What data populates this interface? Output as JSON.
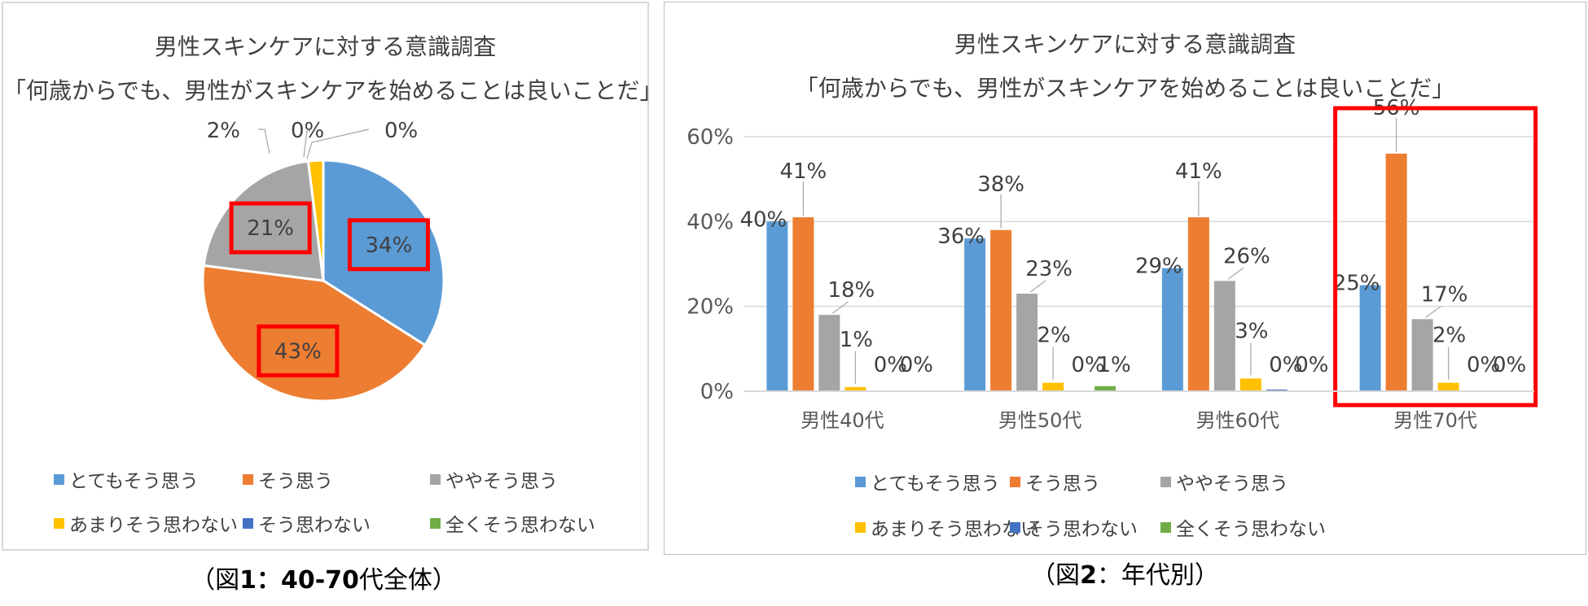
{
  "colors": [
    "#5b9bd5",
    "#ed7d31",
    "#a5a5a5",
    "#ffc000",
    "#4472c4",
    "#70ad47"
  ],
  "highlight_color": "#ff0000",
  "legend": [
    "とてもそう思う",
    "そう思う",
    "ややそう思う",
    "あまりそう思わない",
    "そう思わない",
    "全くそう思わない"
  ],
  "fig1": {
    "title_line1": "男性スキンケアに対する意識調査",
    "title_line2": "「何歳からでも、男性がスキンケアを始めることは良いことだ」",
    "caption_pre": "（図",
    "caption_bold": "1：40-70",
    "caption_post": "代全体）"
  },
  "fig2": {
    "title_line1": "男性スキンケアに対する意識調査",
    "title_line2": "「何歳からでも、男性がスキンケアを始めることは良いことだ」",
    "caption_pre": "（図",
    "caption_bold": "2",
    "caption_post": "：年代別）"
  },
  "chart_data": [
    {
      "type": "pie",
      "title": "男性スキンケアに対する意識調査 「何歳からでも、男性がスキンケアを始めることは良いことだ」",
      "categories": [
        "とてもそう思う",
        "そう思う",
        "ややそう思う",
        "あまりそう思わない",
        "そう思わない",
        "全くそう思わない"
      ],
      "values": [
        34,
        43,
        21,
        2,
        0,
        0
      ],
      "labels": [
        "34%",
        "43%",
        "21%",
        "2%",
        "0%",
        "0%"
      ],
      "highlighted": [
        "34%",
        "43%",
        "21%"
      ],
      "legend_position": "bottom"
    },
    {
      "type": "bar",
      "title": "男性スキンケアに対する意識調査 「何歳からでも、男性がスキンケアを始めることは良いことだ」",
      "categories": [
        "男性40代",
        "男性50代",
        "男性60代",
        "男性70代"
      ],
      "series": [
        {
          "name": "とてもそう思う",
          "values": [
            40,
            36,
            29,
            25
          ],
          "labels": [
            "40%",
            "36%",
            "29%",
            "25%"
          ]
        },
        {
          "name": "そう思う",
          "values": [
            41,
            38,
            41,
            56
          ],
          "labels": [
            "41%",
            "38%",
            "41%",
            "56%"
          ]
        },
        {
          "name": "ややそう思う",
          "values": [
            18,
            23,
            26,
            17
          ],
          "labels": [
            "18%",
            "23%",
            "26%",
            "17%"
          ]
        },
        {
          "name": "あまりそう思わない",
          "values": [
            1,
            2,
            3,
            2
          ],
          "labels": [
            "1%",
            "2%",
            "3%",
            "2%"
          ]
        },
        {
          "name": "そう思わない",
          "values": [
            0,
            0,
            0.4,
            0
          ],
          "labels": [
            "0%",
            "0%",
            "0%",
            "0%"
          ]
        },
        {
          "name": "全くそう思わない",
          "values": [
            0,
            1.2,
            0,
            0
          ],
          "labels": [
            "0%",
            "1%",
            "0%",
            "0%"
          ]
        }
      ],
      "yticks": [
        "0%",
        "20%",
        "40%",
        "60%"
      ],
      "ylim": [
        0,
        60
      ],
      "grid": true,
      "highlighted_category": "男性70代",
      "legend_position": "bottom"
    }
  ]
}
